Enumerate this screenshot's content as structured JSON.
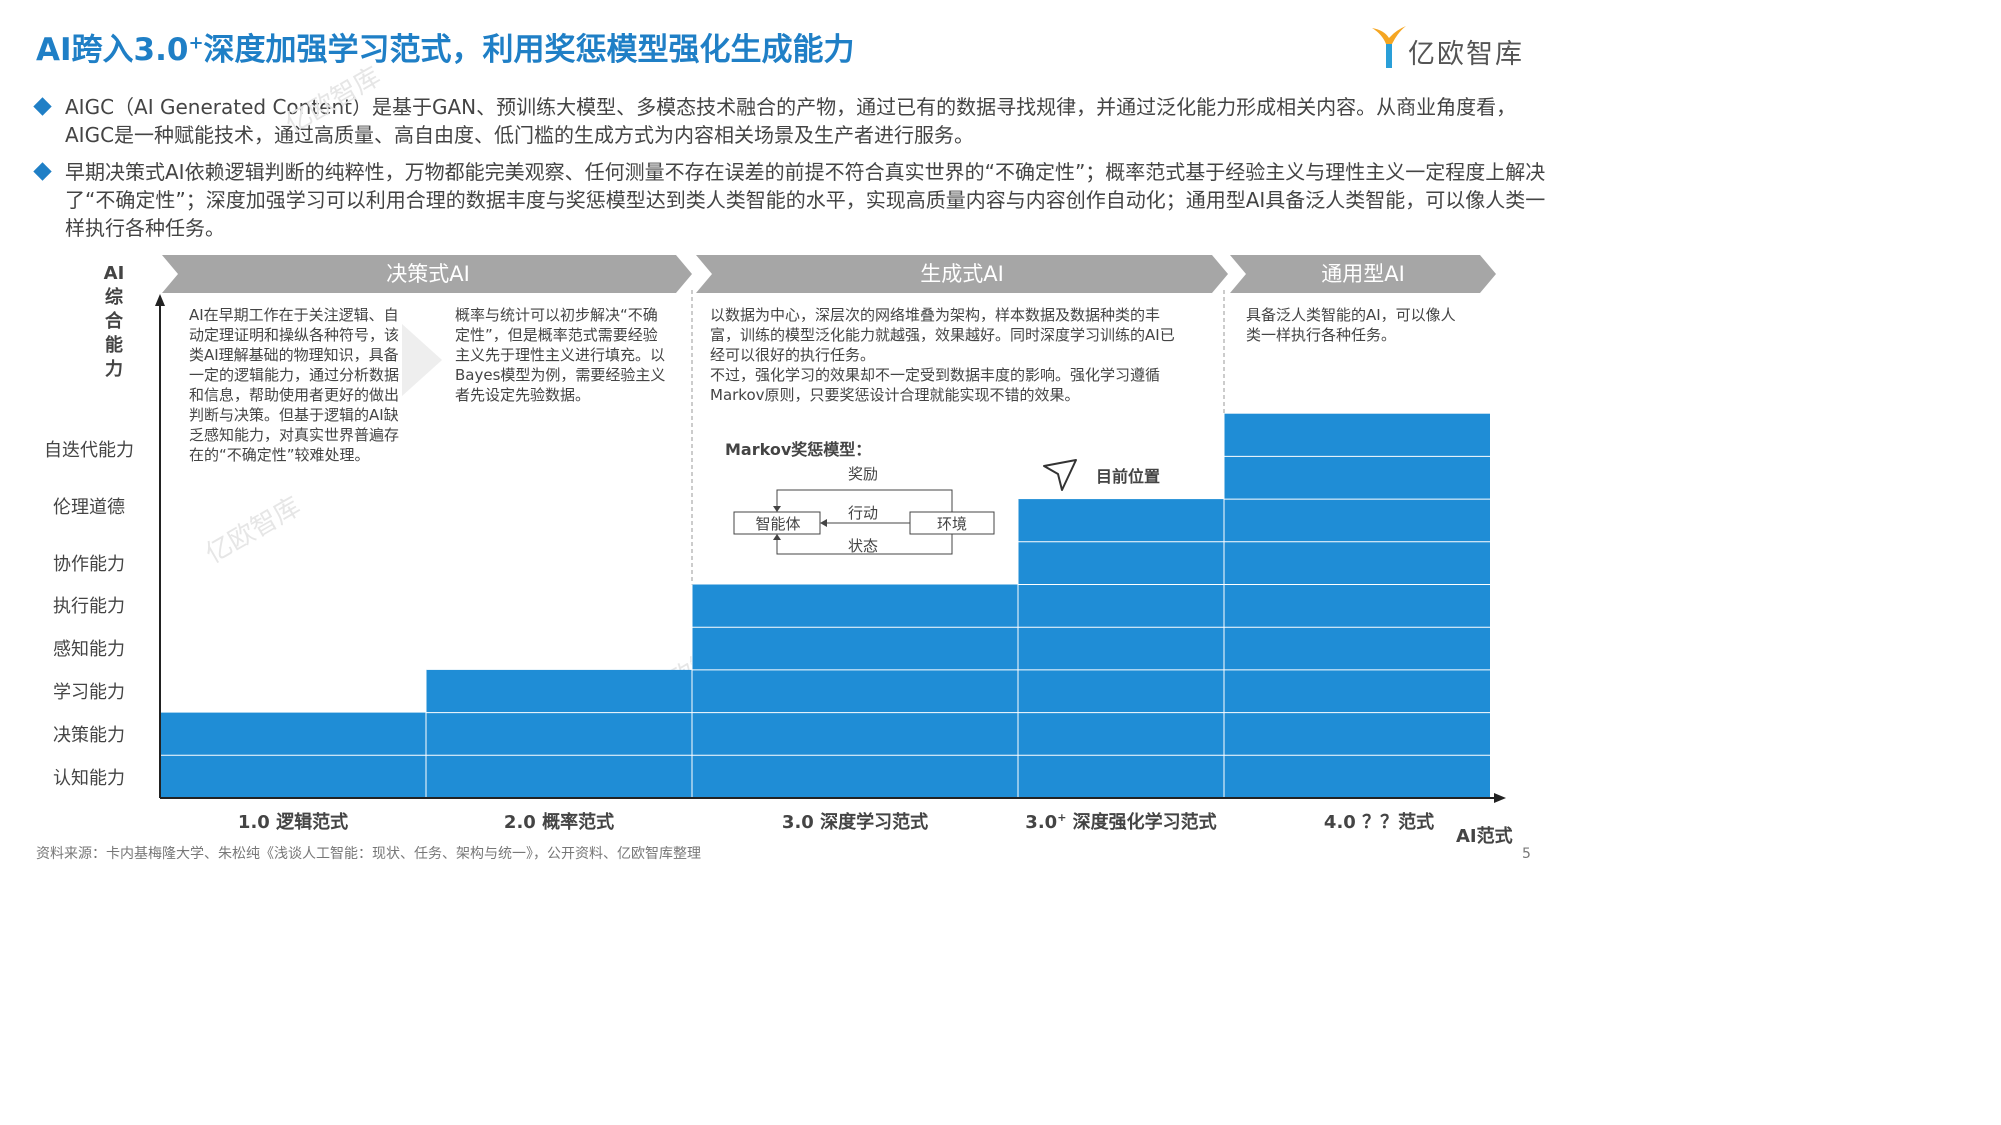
{
  "header": {
    "title_part1": "AI跨入3.0",
    "title_sup": "+",
    "title_part2": "深度加强学习范式，利用奖惩模型强化生成能力",
    "logo_text": "亿欧智库",
    "logo_color": "#f5a623"
  },
  "bullets": [
    "AIGC（AI Generated Content）是基于GAN、预训练大模型、多模态技术融合的产物，通过已有的数据寻找规律，并通过泛化能力形成相关内容。从商业角度看，AIGC是一种赋能技术，通过高质量、高自由度、低门槛的生成方式为内容相关场景及生产者进行服务。",
    "早期决策式AI依赖逻辑判断的纯粹性，万物都能完美观察、任何测量不存在误差的前提不符合真实世界的“不确定性”；概率范式基于经验主义与理性主义一定程度上解决了“不确定性”；深度加强学习可以利用合理的数据丰度与奖惩模型达到类人类智能的水平，实现高质量内容与内容创作自动化；通用型AI具备泛人类智能，可以像人类一样执行各种任务。"
  ],
  "phases": [
    "决策式AI",
    "生成式AI",
    "通用型AI"
  ],
  "descriptions": {
    "logic": "AI在早期工作在于关注逻辑、自动定理证明和操纵各种符号，该类AI理解基础的物理知识，具备一定的逻辑能力，通过分析数据和信息，帮助使用者更好的做出判断与决策。但基于逻辑的AI缺乏感知能力，对真实世界普遍存在的“不确定性”较难处理。",
    "probability": "概率与统计可以初步解决“不确定性”，但是概率范式需要经验主义先于理性主义进行填充。以Bayes模型为例，需要经验主义者先设定先验数据。",
    "deep": "以数据为中心，深层次的网络堆叠为架构，样本数据及数据种类的丰富，训练的模型泛化能力就越强，效果越好。同时深度学习训练的AI已经可以很好的执行任务。\n不过，强化学习的效果却不一定受到数据丰度的影响。强化学习遵循Markov原则，只要奖惩设计合理就能实现不错的效果。",
    "general": "具备泛人类智能的AI，可以像人类一样执行各种任务。"
  },
  "markov": {
    "title": "Markov奖惩模型：",
    "reward": "奖励",
    "action": "行动",
    "state": "状态",
    "agent": "智能体",
    "environment": "环境"
  },
  "current_position_label": "目前位置",
  "chart_data": {
    "type": "bar",
    "y_title": "AI综合能力",
    "x_title": "AI范式",
    "categories": [
      "1.0 逻辑范式",
      "2.0 概率范式",
      "3.0 深度学习范式",
      "3.0+ 深度强化学习范式",
      "4.0 ？？范式"
    ],
    "x_labels": [
      {
        "main": "1.0 逻辑范式",
        "sup": ""
      },
      {
        "main": "2.0 概率范式",
        "sup": ""
      },
      {
        "main": "3.0 深度学习范式",
        "sup": ""
      },
      {
        "main": "3.0",
        "sup": "+",
        "rest": " 深度强化学习范式"
      },
      {
        "main": "4.0 ？？范式",
        "sup": ""
      }
    ],
    "levels": [
      "认知能力",
      "决策能力",
      "学习能力",
      "感知能力",
      "执行能力",
      "协作能力",
      "伦理道德",
      "自迭代能力"
    ],
    "values": [
      2,
      3,
      5,
      7,
      9
    ],
    "bar_color": "#1f8dd6"
  },
  "source": "资料来源：卡内基梅隆大学、朱松纯《浅谈人工智能：现状、任务、架构与统一》，公开资料、亿欧智库整理",
  "page_number": "5",
  "watermark": "亿欧智库"
}
